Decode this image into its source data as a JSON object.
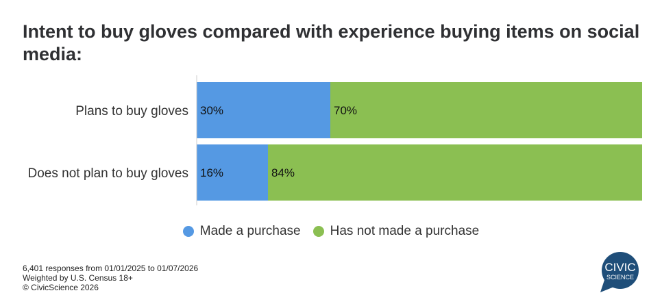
{
  "chart_data": {
    "type": "bar",
    "orientation": "horizontal",
    "stacked": true,
    "title": "Intent to buy gloves compared with experience buying items on social media:",
    "categories": [
      "Plans to buy gloves",
      "Does not plan to buy gloves"
    ],
    "series": [
      {
        "name": "Made a purchase",
        "values": [
          30,
          16
        ],
        "labels": [
          "30%",
          "16%"
        ],
        "color": "#5599e3"
      },
      {
        "name": "Has not made a purchase",
        "values": [
          70,
          84
        ],
        "labels": [
          "70%",
          "84%"
        ],
        "color": "#8bbf52"
      }
    ],
    "xlim": [
      0,
      100
    ],
    "legend_position": "bottom"
  },
  "footer": {
    "line1": "6,401 responses from 01/01/2025 to 01/07/2026",
    "line2": "Weighted by U.S. Census 18+",
    "line3": "© CivicScience 2026"
  },
  "logo": {
    "text1": "CIVIC",
    "text2": "SCIENCE",
    "color": "#1f4e79"
  }
}
